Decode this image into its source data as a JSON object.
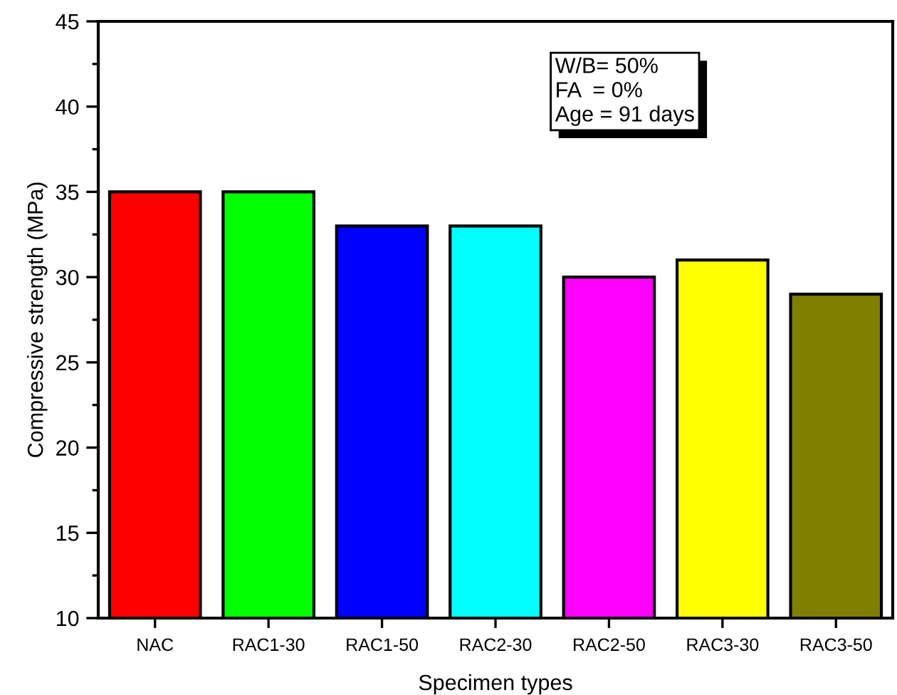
{
  "chart_data": {
    "type": "bar",
    "xlabel": "Specimen types",
    "ylabel": "Compressive strength (MPa)",
    "categories": [
      "NAC",
      "RAC1-30",
      "RAC1-50",
      "RAC2-30",
      "RAC2-50",
      "RAC3-30",
      "RAC3-50"
    ],
    "values": [
      35,
      35,
      33,
      33,
      30,
      31,
      29
    ],
    "colors": [
      "#ff0000",
      "#00ff00",
      "#0000ff",
      "#00ffff",
      "#ff00ff",
      "#ffff00",
      "#808000"
    ],
    "ylim": [
      10,
      45
    ],
    "yticks": [
      10,
      {
        "value": 12.5,
        "label": null
      },
      15,
      {
        "value": 17.5,
        "label": null
      },
      20,
      {
        "value": 22.5,
        "label": null
      },
      25,
      {
        "value": 27.5,
        "label": null
      },
      30,
      {
        "value": 32.5,
        "label": null
      },
      35,
      {
        "value": 37.5,
        "label": null
      },
      40,
      {
        "value": 42.5,
        "label": null
      },
      45
    ],
    "annotations": [
      "W/B= 50%\nFA  = 0%\nAge = 91 days"
    ],
    "grid": false,
    "legend": false
  }
}
